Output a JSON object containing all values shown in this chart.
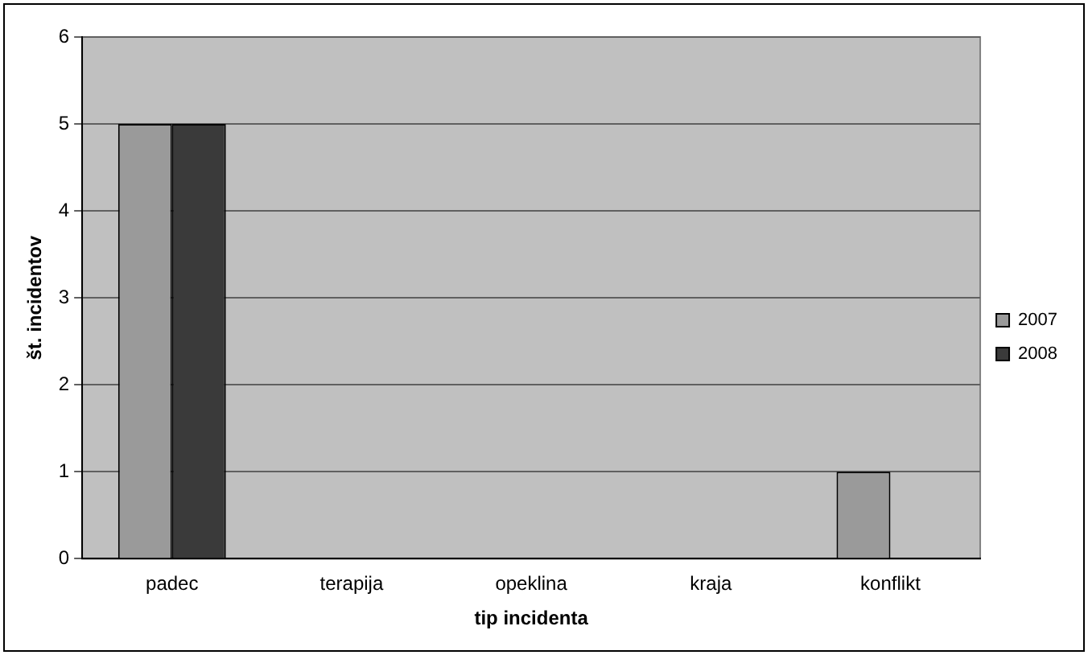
{
  "chart_data": {
    "type": "bar",
    "xlabel": "tip incidenta",
    "ylabel": "št. incidentov",
    "categories": [
      "padec",
      "terapija",
      "opeklina",
      "kraja",
      "konflikt"
    ],
    "series": [
      {
        "name": "2007",
        "color": "#9a9a9a",
        "values": [
          5,
          0,
          0,
          0,
          1
        ]
      },
      {
        "name": "2008",
        "color": "#3a3a3a",
        "values": [
          5,
          0,
          0,
          0,
          0
        ]
      }
    ],
    "ylim": [
      0,
      6
    ],
    "yticks": [
      0,
      1,
      2,
      3,
      4,
      5,
      6
    ],
    "grid": "y",
    "legend": "right"
  }
}
